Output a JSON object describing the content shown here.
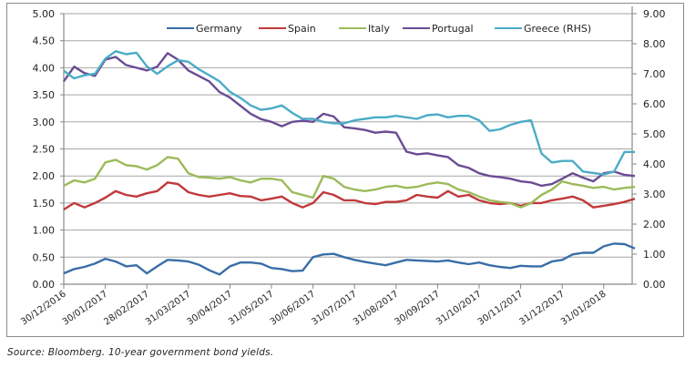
{
  "chart_data": {
    "type": "line",
    "title": "",
    "xlabel": "",
    "ylabel": "",
    "y2label": "",
    "ylim": [
      0,
      5
    ],
    "y2lim": [
      0,
      9
    ],
    "grid": true,
    "legend_position": "top-center",
    "y_ticks": [
      "0.00",
      "0.50",
      "1.00",
      "1.50",
      "2.00",
      "2.50",
      "3.00",
      "3.50",
      "4.00",
      "4.50",
      "5.00"
    ],
    "y2_ticks": [
      "0.00",
      "1.00",
      "2.00",
      "3.00",
      "4.00",
      "5.00",
      "6.00",
      "7.00",
      "8.00",
      "9.00"
    ],
    "x_tick_labels": [
      "30/12/2016",
      "30/01/2017",
      "28/02/2017",
      "31/03/2017",
      "30/04/2017",
      "31/05/2017",
      "30/06/2017",
      "31/07/2017",
      "31/08/2017",
      "30/09/2017",
      "31/10/2017",
      "30/11/2017",
      "31/12/2017",
      "31/01/2018"
    ],
    "x_range_months": [
      0,
      13.75
    ],
    "x_unit": "months since 30/12/2016",
    "x": [
      0,
      0.25,
      0.5,
      0.75,
      1,
      1.25,
      1.5,
      1.75,
      2,
      2.25,
      2.5,
      2.75,
      3,
      3.25,
      3.5,
      3.75,
      4,
      4.25,
      4.5,
      4.75,
      5,
      5.25,
      5.5,
      5.75,
      6,
      6.25,
      6.5,
      6.75,
      7,
      7.25,
      7.5,
      7.75,
      8,
      8.25,
      8.5,
      8.75,
      9,
      9.25,
      9.5,
      9.75,
      10,
      10.25,
      10.5,
      10.75,
      11,
      11.25,
      11.5,
      11.75,
      12,
      12.25,
      12.5,
      12.75,
      13,
      13.25,
      13.5,
      13.75
    ],
    "series": [
      {
        "name": "Germany",
        "axis": "left",
        "color": "#3a6ea8",
        "values": [
          0.2,
          0.28,
          0.32,
          0.38,
          0.47,
          0.42,
          0.33,
          0.35,
          0.2,
          0.33,
          0.45,
          0.44,
          0.42,
          0.36,
          0.26,
          0.18,
          0.33,
          0.4,
          0.4,
          0.38,
          0.3,
          0.28,
          0.24,
          0.25,
          0.5,
          0.55,
          0.56,
          0.5,
          0.45,
          0.41,
          0.38,
          0.35,
          0.4,
          0.45,
          0.44,
          0.43,
          0.42,
          0.44,
          0.4,
          0.37,
          0.4,
          0.35,
          0.32,
          0.3,
          0.34,
          0.33,
          0.33,
          0.42,
          0.45,
          0.55,
          0.58,
          0.58,
          0.7,
          0.75,
          0.74,
          0.66
        ]
      },
      {
        "name": "Spain",
        "axis": "left",
        "color": "#c0393b",
        "values": [
          1.38,
          1.5,
          1.42,
          1.5,
          1.6,
          1.72,
          1.65,
          1.62,
          1.68,
          1.72,
          1.88,
          1.85,
          1.7,
          1.65,
          1.62,
          1.65,
          1.68,
          1.63,
          1.62,
          1.55,
          1.58,
          1.62,
          1.5,
          1.42,
          1.5,
          1.7,
          1.65,
          1.55,
          1.55,
          1.5,
          1.48,
          1.52,
          1.52,
          1.55,
          1.65,
          1.62,
          1.6,
          1.72,
          1.62,
          1.65,
          1.55,
          1.5,
          1.48,
          1.5,
          1.45,
          1.5,
          1.5,
          1.55,
          1.58,
          1.62,
          1.55,
          1.42,
          1.45,
          1.48,
          1.52,
          1.58
        ]
      },
      {
        "name": "Italy",
        "axis": "left",
        "color": "#9bbb59",
        "values": [
          1.82,
          1.92,
          1.88,
          1.95,
          2.25,
          2.3,
          2.2,
          2.18,
          2.12,
          2.2,
          2.35,
          2.32,
          2.05,
          1.98,
          1.97,
          1.95,
          1.98,
          1.92,
          1.88,
          1.95,
          1.95,
          1.92,
          1.7,
          1.65,
          1.6,
          2.0,
          1.95,
          1.8,
          1.75,
          1.72,
          1.75,
          1.8,
          1.82,
          1.78,
          1.8,
          1.85,
          1.88,
          1.85,
          1.75,
          1.7,
          1.62,
          1.55,
          1.52,
          1.5,
          1.42,
          1.5,
          1.65,
          1.75,
          1.9,
          1.85,
          1.82,
          1.78,
          1.8,
          1.75,
          1.78,
          1.8
        ]
      },
      {
        "name": "Portugal",
        "axis": "left",
        "color": "#6a4c93",
        "values": [
          3.75,
          4.02,
          3.9,
          3.85,
          4.15,
          4.2,
          4.05,
          4.0,
          3.95,
          4.02,
          4.27,
          4.15,
          3.95,
          3.85,
          3.75,
          3.55,
          3.45,
          3.3,
          3.15,
          3.05,
          3.0,
          2.92,
          3.0,
          3.02,
          3.0,
          3.15,
          3.1,
          2.9,
          2.88,
          2.85,
          2.8,
          2.82,
          2.8,
          2.45,
          2.4,
          2.42,
          2.38,
          2.35,
          2.2,
          2.15,
          2.05,
          2.0,
          1.98,
          1.95,
          1.9,
          1.88,
          1.82,
          1.85,
          1.95,
          2.05,
          1.97,
          1.9,
          2.05,
          2.08,
          2.02,
          2.0
        ]
      },
      {
        "name": "Greece (RHS)",
        "axis": "right",
        "color": "#4bacc6",
        "values": [
          7.1,
          6.85,
          6.95,
          7.0,
          7.5,
          7.75,
          7.65,
          7.7,
          7.25,
          7.0,
          7.25,
          7.45,
          7.4,
          7.15,
          6.95,
          6.75,
          6.4,
          6.2,
          5.95,
          5.8,
          5.85,
          5.95,
          5.7,
          5.5,
          5.5,
          5.4,
          5.35,
          5.35,
          5.45,
          5.5,
          5.55,
          5.55,
          5.6,
          5.55,
          5.5,
          5.62,
          5.65,
          5.55,
          5.6,
          5.6,
          5.45,
          5.1,
          5.15,
          5.3,
          5.4,
          5.45,
          4.35,
          4.05,
          4.1,
          4.1,
          3.75,
          3.7,
          3.65,
          3.75,
          4.4,
          4.4
        ]
      }
    ]
  },
  "legend": {
    "items": [
      "Germany",
      "Spain",
      "Italy",
      "Portugal",
      "Greece (RHS)"
    ]
  },
  "source_note": "Source: Bloomberg. 10-year government bond yields."
}
